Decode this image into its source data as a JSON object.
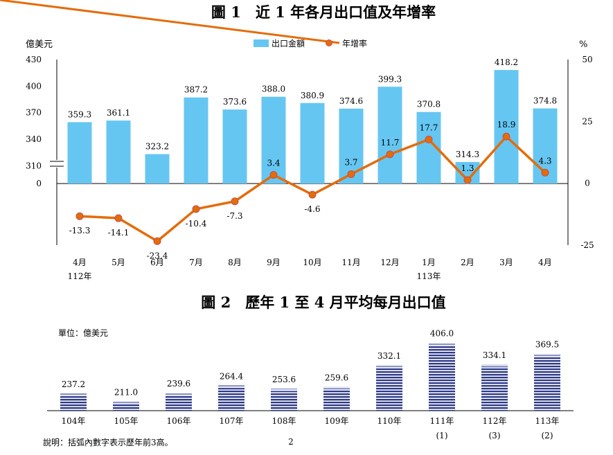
{
  "page_number": "2",
  "note": "說明：括弧內數字表示歷年前3高。",
  "chart_data": [
    {
      "type": "bar+line",
      "title": "圖 1　近 1 年各月出口值及年增率",
      "ylabel_left": "億美元",
      "ylabel_right": "%",
      "left_axis_ticks": [
        "430",
        "400",
        "370",
        "340",
        "310",
        "0"
      ],
      "left_axis_break": [
        0,
        290
      ],
      "ylim_left": [
        290,
        430
      ],
      "right_axis_ticks": [
        "50",
        "25",
        "0",
        "-25"
      ],
      "ylim_right": [
        -25,
        50
      ],
      "legend": {
        "position": "top-center",
        "bar_label": "出口金額",
        "line_label": "年增率"
      },
      "categories": [
        "4月",
        "5月",
        "6月",
        "7月",
        "8月",
        "9月",
        "10月",
        "11月",
        "12月",
        "1月",
        "2月",
        "3月",
        "4月"
      ],
      "year_labels": [
        {
          "index": 0,
          "text": "112年"
        },
        {
          "index": 9,
          "text": "113年"
        }
      ],
      "series": [
        {
          "name": "出口金額",
          "kind": "bar",
          "color": "#66c6f2",
          "values": [
            359.3,
            361.1,
            323.2,
            387.2,
            373.6,
            388.0,
            380.9,
            374.6,
            399.3,
            370.8,
            314.3,
            418.2,
            374.8
          ],
          "labels": [
            "359.3",
            "361.1",
            "323.2",
            "387.2",
            "373.6",
            "388.0",
            "380.9",
            "374.6",
            "399.3",
            "370.8",
            "314.3",
            "418.2",
            "374.8"
          ]
        },
        {
          "name": "年增率",
          "kind": "line",
          "color": "#e46c0a",
          "values": [
            -13.3,
            -14.1,
            -23.4,
            -10.4,
            -7.3,
            3.4,
            -4.6,
            3.7,
            11.7,
            17.7,
            1.3,
            18.9,
            4.3
          ],
          "labels": [
            "-13.3",
            "-14.1",
            "-23.4",
            "-10.4",
            "-7.3",
            "3.4",
            "-4.6",
            "3.7",
            "11.7",
            "17.7",
            "1.3",
            "18.9",
            "4.3"
          ]
        }
      ]
    },
    {
      "type": "bar",
      "title": "圖 2　歷年 1 至 4 月平均每月出口值",
      "unit_label": "單位：億美元",
      "categories": [
        "104年",
        "105年",
        "106年",
        "107年",
        "108年",
        "109年",
        "110年",
        "111年",
        "112年",
        "113年"
      ],
      "rank_labels": [
        "",
        "",
        "",
        "",
        "",
        "",
        "",
        "(1)",
        "(3)",
        "(2)"
      ],
      "values": [
        237.2,
        211.0,
        239.6,
        264.4,
        253.6,
        259.6,
        332.1,
        406.0,
        334.1,
        369.5
      ],
      "labels": [
        "237.2",
        "211.0",
        "239.6",
        "264.4",
        "253.6",
        "259.6",
        "332.1",
        "406.0",
        "334.1",
        "369.5"
      ],
      "bar_color": "#2e3a87",
      "ylim": [
        180,
        410
      ]
    }
  ]
}
